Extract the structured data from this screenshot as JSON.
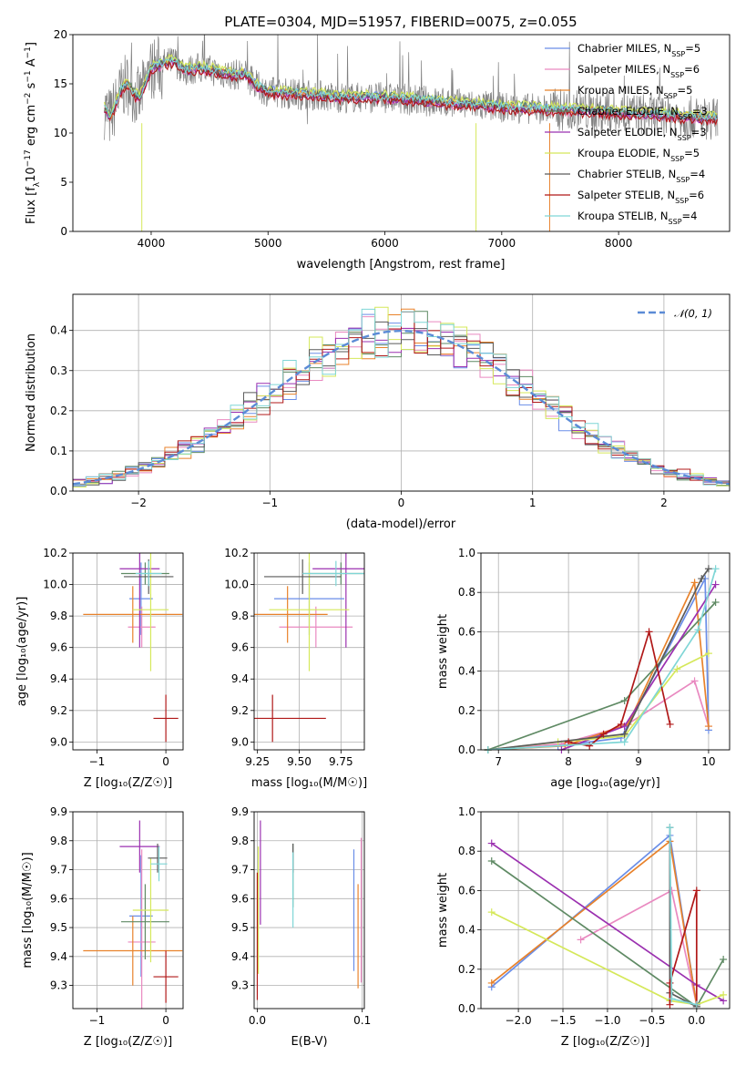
{
  "chart_data": [
    {
      "id": "spectrum",
      "type": "line",
      "title": "PLATE=0304, MJD=51957, FIBERID=0075, z=0.055",
      "xlabel": "wavelength [Angstrom, rest frame]",
      "ylabel": "Flux [f_λ 10^-17 erg cm^-2 s^-1 A^-1]",
      "xlim": [
        3330,
        8950
      ],
      "ylim": [
        0,
        20
      ],
      "xticks": [
        "4000",
        "5000",
        "6000",
        "7000",
        "8000"
      ],
      "yticks": [
        "0",
        "5",
        "10",
        "15",
        "20"
      ],
      "grid": false,
      "legend_position": "top-right",
      "data_series_name": "",
      "data_color": "#808080",
      "data_continuum": {
        "x": [
          3600,
          3650,
          3700,
          3750,
          3800,
          3850,
          3900,
          3950,
          4000,
          4100,
          4200,
          4300,
          4400,
          4500,
          4600,
          4700,
          4800,
          4900,
          5000,
          5200,
          5400,
          5600,
          5800,
          6000,
          6200,
          6400,
          6600,
          6800,
          7000,
          7200,
          7400,
          7600,
          7800,
          8000,
          8200,
          8400,
          8600,
          8800
        ],
        "y": [
          12.5,
          11.5,
          13.0,
          14.5,
          15.0,
          14.0,
          13.5,
          15.0,
          16.5,
          17.0,
          17.3,
          16.3,
          16.6,
          16.4,
          16.1,
          15.9,
          16.0,
          14.8,
          14.2,
          14.0,
          13.9,
          13.6,
          13.6,
          13.6,
          13.4,
          13.2,
          13.0,
          12.8,
          12.6,
          12.5,
          12.4,
          12.3,
          12.2,
          12.0,
          11.9,
          11.8,
          11.6,
          11.5
        ]
      },
      "legend_entries": [
        {
          "label": "Chabrier MILES, N",
          "sub": "SSP",
          "suffix": "=5",
          "color": "#6a8ee8"
        },
        {
          "label": "Salpeter MILES, N",
          "sub": "SSP",
          "suffix": "=6",
          "color": "#e989c0"
        },
        {
          "label": "Kroupa MILES, N",
          "sub": "SSP",
          "suffix": "=5",
          "color": "#e8822b"
        },
        {
          "label": "Chabrier ELODIE, N",
          "sub": "SSP",
          "suffix": "=3",
          "color": "#5f8a64"
        },
        {
          "label": "Salpeter ELODIE, N",
          "sub": "SSP",
          "suffix": "=3",
          "color": "#9b30b0"
        },
        {
          "label": "Kroupa ELODIE, N",
          "sub": "SSP",
          "suffix": "=5",
          "color": "#d5e85a"
        },
        {
          "label": "Chabrier STELIB, N",
          "sub": "SSP",
          "suffix": "=4",
          "color": "#5a5a5a"
        },
        {
          "label": "Salpeter STELIB, N",
          "sub": "SSP",
          "suffix": "=6",
          "color": "#b01818"
        },
        {
          "label": "Kroupa STELIB, N",
          "sub": "SSP",
          "suffix": "=4",
          "color": "#7fd6d6"
        }
      ]
    },
    {
      "id": "residuals",
      "type": "histogram",
      "xlabel": "(data-model)/error",
      "ylabel": "Normed distribution",
      "xlim": [
        -2.5,
        2.5
      ],
      "ylim": [
        0,
        0.49
      ],
      "xticks": [
        "−2",
        "−1",
        "0",
        "1",
        "2"
      ],
      "yticks": [
        "0.0",
        "0.1",
        "0.2",
        "0.3",
        "0.4"
      ],
      "grid": true,
      "legend_position": "top-right",
      "legend_label": "𝒩(0, 1)",
      "gaussian_color": "#5b8bd6",
      "bin_width": 0.1,
      "bins_from": -2.5
    },
    {
      "id": "age-vs-Z",
      "type": "errorbar",
      "xlabel": "Z [log₁₀(Z/Z☉)]",
      "ylabel": "age  [log₁₀(age/yr)]",
      "xlim": [
        -1.35,
        0.25
      ],
      "ylim": [
        8.95,
        10.2
      ],
      "xticks": [
        "−1",
        "0"
      ],
      "yticks": [
        "9.0",
        "9.2",
        "9.4",
        "9.6",
        "9.8",
        "10.0",
        "10.2"
      ],
      "grid": true,
      "points": [
        {
          "x": -0.36,
          "xerr": 0.17,
          "y": 9.91,
          "yerr": 0.23,
          "color": "#6a8ee8"
        },
        {
          "x": -0.35,
          "xerr": 0.2,
          "y": 9.73,
          "yerr": 0.13,
          "color": "#e989c0"
        },
        {
          "x": -0.48,
          "xerr": 0.72,
          "y": 9.81,
          "yerr": 0.18,
          "color": "#e8822b"
        },
        {
          "x": -0.3,
          "xerr": 0.35,
          "y": 10.07,
          "yerr": 0.07,
          "color": "#5f8a64"
        },
        {
          "x": -0.38,
          "xerr": 0.29,
          "y": 10.1,
          "yerr": 0.5,
          "color": "#9b30b0"
        },
        {
          "x": -0.22,
          "xerr": 0.26,
          "y": 9.84,
          "yerr": 0.39,
          "color": "#d5e85a"
        },
        {
          "x": -0.25,
          "xerr": 0.36,
          "y": 10.05,
          "yerr": 0.11,
          "color": "#5a5a5a"
        },
        {
          "x": 0.0,
          "xerr": 0.18,
          "y": 9.15,
          "yerr": 0.15,
          "color": "#b01818"
        },
        {
          "x": -0.25,
          "xerr": 0.19,
          "y": 10.07,
          "yerr": 0.08,
          "color": "#7fd6d6"
        }
      ]
    },
    {
      "id": "age-vs-mass",
      "type": "errorbar",
      "xlabel": "mass [log₁₀(M/M☉)]",
      "ylabel": "",
      "xlim": [
        9.23,
        9.89
      ],
      "ylim": [
        8.95,
        10.2
      ],
      "xticks": [
        "9.25",
        "9.50",
        "9.75"
      ],
      "yticks": [
        "9.0",
        "9.2",
        "9.4",
        "9.6",
        "9.8",
        "10.0",
        "10.2"
      ],
      "grid": true,
      "points": [
        {
          "x": 9.56,
          "xerr": 0.21,
          "y": 9.91,
          "yerr": 0.23,
          "color": "#6a8ee8"
        },
        {
          "x": 9.6,
          "xerr": 0.22,
          "y": 9.73,
          "yerr": 0.13,
          "color": "#e989c0"
        },
        {
          "x": 9.43,
          "xerr": 0.24,
          "y": 9.81,
          "yerr": 0.18,
          "color": "#e8822b"
        },
        {
          "x": 9.75,
          "xerr": 0.23,
          "y": 10.07,
          "yerr": 0.07,
          "color": "#5f8a64"
        },
        {
          "x": 9.78,
          "xerr": 0.2,
          "y": 10.1,
          "yerr": 0.5,
          "color": "#9b30b0"
        },
        {
          "x": 9.56,
          "xerr": 0.24,
          "y": 9.84,
          "yerr": 0.39,
          "color": "#d5e85a"
        },
        {
          "x": 9.52,
          "xerr": 0.23,
          "y": 10.05,
          "yerr": 0.11,
          "color": "#5a5a5a"
        },
        {
          "x": 9.34,
          "xerr": 0.32,
          "y": 9.15,
          "yerr": 0.15,
          "color": "#b01818"
        },
        {
          "x": 9.72,
          "xerr": 0.2,
          "y": 10.07,
          "yerr": 0.08,
          "color": "#7fd6d6"
        }
      ]
    },
    {
      "id": "weight-vs-age",
      "type": "line",
      "xlabel": "age  [log₁₀(age/yr)]",
      "ylabel": "mass weight",
      "xlim": [
        6.75,
        10.3
      ],
      "ylim": [
        0,
        1.0
      ],
      "xticks": [
        "7",
        "8",
        "9",
        "10"
      ],
      "yticks": [
        "0.0",
        "0.2",
        "0.4",
        "0.6",
        "0.8",
        "1.0"
      ],
      "grid": true,
      "series": [
        {
          "color": "#6a8ee8",
          "x": [
            6.85,
            7.85,
            8.75,
            9.95,
            10.0
          ],
          "y": [
            0.0,
            0.02,
            0.06,
            0.87,
            0.1
          ]
        },
        {
          "color": "#e989c0",
          "x": [
            6.85,
            7.9,
            8.8,
            9.8,
            10.0
          ],
          "y": [
            0.0,
            0.03,
            0.12,
            0.35,
            0.12
          ]
        },
        {
          "color": "#e8822b",
          "x": [
            6.85,
            7.95,
            8.85,
            9.8,
            10.0
          ],
          "y": [
            0.0,
            0.02,
            0.13,
            0.85,
            0.12
          ]
        },
        {
          "color": "#5f8a64",
          "x": [
            6.85,
            8.8,
            10.1
          ],
          "y": [
            0.0,
            0.25,
            0.75
          ]
        },
        {
          "color": "#9b30b0",
          "x": [
            7.9,
            8.8,
            10.1
          ],
          "y": [
            0.0,
            0.12,
            0.84
          ]
        },
        {
          "color": "#d5e85a",
          "x": [
            6.85,
            7.85,
            8.8,
            9.55,
            10.0
          ],
          "y": [
            0.0,
            0.04,
            0.07,
            0.41,
            0.49
          ]
        },
        {
          "color": "#5a5a5a",
          "x": [
            6.85,
            8.8,
            9.9,
            10.0
          ],
          "y": [
            0.0,
            0.08,
            0.87,
            0.92
          ]
        },
        {
          "color": "#b01818",
          "x": [
            8.0,
            8.3,
            8.5,
            8.75,
            9.15,
            9.45
          ],
          "y": [
            0.04,
            0.02,
            0.08,
            0.13,
            0.6,
            0.13
          ]
        },
        {
          "color": "#7fd6d6",
          "x": [
            6.85,
            8.8,
            9.85,
            10.1
          ],
          "y": [
            0.0,
            0.04,
            0.61,
            0.92
          ]
        }
      ]
    },
    {
      "id": "mass-vs-Z",
      "type": "errorbar",
      "xlabel": "Z [log₁₀(Z/Z☉)]",
      "ylabel": "mass [log₁₀(M/M☉)]",
      "xlim": [
        -1.35,
        0.25
      ],
      "ylim": [
        9.22,
        9.9
      ],
      "xticks": [
        "−1",
        "0"
      ],
      "yticks": [
        "9.3",
        "9.4",
        "9.5",
        "9.6",
        "9.7",
        "9.8",
        "9.9"
      ],
      "grid": true,
      "points": [
        {
          "x": -0.36,
          "xerr": 0.17,
          "y": 9.54,
          "yerr": 0.21,
          "color": "#6a8ee8"
        },
        {
          "x": -0.35,
          "xerr": 0.2,
          "y": 9.45,
          "yerr": 0.32,
          "color": "#e989c0"
        },
        {
          "x": -0.48,
          "xerr": 0.72,
          "y": 9.42,
          "yerr": 0.12,
          "color": "#e8822b"
        },
        {
          "x": -0.3,
          "xerr": 0.35,
          "y": 9.52,
          "yerr": 0.13,
          "color": "#5f8a64"
        },
        {
          "x": -0.38,
          "xerr": 0.29,
          "y": 9.78,
          "yerr": 0.09,
          "color": "#9b30b0"
        },
        {
          "x": -0.22,
          "xerr": 0.26,
          "y": 9.56,
          "yerr": 0.18,
          "color": "#d5e85a"
        },
        {
          "x": -0.12,
          "xerr": 0.14,
          "y": 9.74,
          "yerr": 0.05,
          "color": "#5a5a5a"
        },
        {
          "x": 0.0,
          "xerr": 0.18,
          "y": 9.33,
          "yerr": 0.09,
          "color": "#b01818"
        },
        {
          "x": -0.1,
          "xerr": 0.12,
          "y": 9.72,
          "yerr": 0.06,
          "color": "#7fd6d6"
        }
      ]
    },
    {
      "id": "mass-vs-EBV",
      "type": "errorbar",
      "xlabel": "E(B-V)",
      "ylabel": "",
      "xlim": [
        -0.003,
        0.102
      ],
      "ylim": [
        9.22,
        9.9
      ],
      "xticks": [
        "0.0",
        "0.1"
      ],
      "yticks": [
        "9.3",
        "9.4",
        "9.5",
        "9.6",
        "9.7",
        "9.8",
        "9.9"
      ],
      "grid": true,
      "points": [
        {
          "x": 0.092,
          "xerr": 0,
          "y": 9.56,
          "yerr": 0.21,
          "color": "#6a8ee8"
        },
        {
          "x": 0.099,
          "xerr": 0,
          "y": 9.56,
          "yerr": 0.25,
          "color": "#e989c0"
        },
        {
          "x": 0.096,
          "xerr": 0,
          "y": 9.47,
          "yerr": 0.18,
          "color": "#e8822b"
        },
        {
          "x": 0.034,
          "xerr": 0,
          "y": 9.68,
          "yerr": 0.11,
          "color": "#5f8a64"
        },
        {
          "x": 0.003,
          "xerr": 0,
          "y": 9.69,
          "yerr": 0.18,
          "color": "#9b30b0"
        },
        {
          "x": 0.001,
          "xerr": 0,
          "y": 9.56,
          "yerr": 0.22,
          "color": "#d5e85a"
        },
        {
          "x": 0.034,
          "xerr": 0,
          "y": 9.74,
          "yerr": 0.05,
          "color": "#5a5a5a"
        },
        {
          "x": 0.0,
          "xerr": 0,
          "y": 9.47,
          "yerr": 0.22,
          "color": "#b01818"
        },
        {
          "x": 0.034,
          "xerr": 0,
          "y": 9.63,
          "yerr": 0.13,
          "color": "#7fd6d6"
        }
      ]
    },
    {
      "id": "weight-vs-Z",
      "type": "line",
      "xlabel": "Z [log₁₀(Z/Z☉)]",
      "ylabel": "mass weight",
      "xlim": [
        -2.42,
        0.37
      ],
      "ylim": [
        0,
        1.0
      ],
      "xticks": [
        "−2.0",
        "−1.5",
        "−1.0",
        "−0.5",
        "0.0"
      ],
      "yticks": [
        "0.0",
        "0.2",
        "0.4",
        "0.6",
        "0.8",
        "1.0"
      ],
      "grid": true,
      "series": [
        {
          "color": "#6a8ee8",
          "x": [
            -2.3,
            -0.3,
            0.0
          ],
          "y": [
            0.11,
            0.88,
            0.02
          ]
        },
        {
          "color": "#e989c0",
          "x": [
            -1.3,
            -0.28,
            0.0
          ],
          "y": [
            0.35,
            0.6,
            0.02
          ]
        },
        {
          "color": "#e8822b",
          "x": [
            -2.3,
            -0.3,
            0.0
          ],
          "y": [
            0.13,
            0.85,
            0.02
          ]
        },
        {
          "color": "#5f8a64",
          "x": [
            -2.3,
            0.0,
            0.3
          ],
          "y": [
            0.75,
            0.01,
            0.25
          ]
        },
        {
          "color": "#9b30b0",
          "x": [
            -2.3,
            0.0,
            0.3
          ],
          "y": [
            0.84,
            0.12,
            0.04
          ]
        },
        {
          "color": "#d5e85a",
          "x": [
            -2.3,
            -0.3,
            0.0,
            0.3
          ],
          "y": [
            0.49,
            0.04,
            0.02,
            0.07
          ]
        },
        {
          "color": "#5a5a5a",
          "x": [
            -0.3,
            -0.3,
            0.0
          ],
          "y": [
            0.92,
            0.08,
            0.01
          ]
        },
        {
          "color": "#b01818",
          "x": [
            -0.3,
            -0.3,
            0.0,
            0.0
          ],
          "y": [
            0.02,
            0.13,
            0.6,
            0.02
          ]
        },
        {
          "color": "#7fd6d6",
          "x": [
            -0.3,
            -0.28,
            0.0
          ],
          "y": [
            0.92,
            0.05,
            0.02
          ]
        }
      ]
    }
  ]
}
